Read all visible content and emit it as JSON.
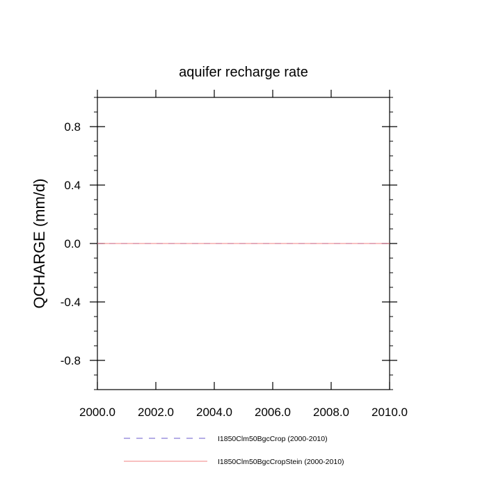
{
  "chart_data": {
    "type": "line",
    "title": "aquifer recharge rate",
    "xlabel": "",
    "ylabel": "QCHARGE  (mm/d)",
    "xlim": [
      2000,
      2010
    ],
    "ylim": [
      -1,
      1
    ],
    "x_ticks": [
      2000,
      2002,
      2004,
      2006,
      2008,
      2010
    ],
    "x_tick_labels": [
      "2000.0",
      "2002.0",
      "2004.0",
      "2006.0",
      "2008.0",
      "2010.0"
    ],
    "y_ticks": [
      -0.8,
      -0.4,
      0.0,
      0.4,
      0.8
    ],
    "y_tick_labels": [
      "-0.8",
      "-0.4",
      "0.0",
      "0.4",
      "0.8"
    ],
    "grid": false,
    "legend_position": "bottom",
    "series": [
      {
        "name": "I1850Clm50BgcCrop (2000-2010)",
        "color": "#6a5acd",
        "style": "dashed",
        "x": [
          2000,
          2001,
          2002,
          2003,
          2004,
          2005,
          2006,
          2007,
          2008,
          2009,
          2010
        ],
        "values": [
          0,
          0,
          0,
          0,
          0,
          0,
          0,
          0,
          0,
          0,
          0
        ]
      },
      {
        "name": "I1850Clm50BgcCropStein (2000-2010)",
        "color": "#f08080",
        "style": "solid",
        "x": [
          2000,
          2001,
          2002,
          2003,
          2004,
          2005,
          2006,
          2007,
          2008,
          2009,
          2010
        ],
        "values": [
          0,
          0,
          0,
          0,
          0,
          0,
          0,
          0,
          0,
          0,
          0
        ]
      }
    ]
  }
}
